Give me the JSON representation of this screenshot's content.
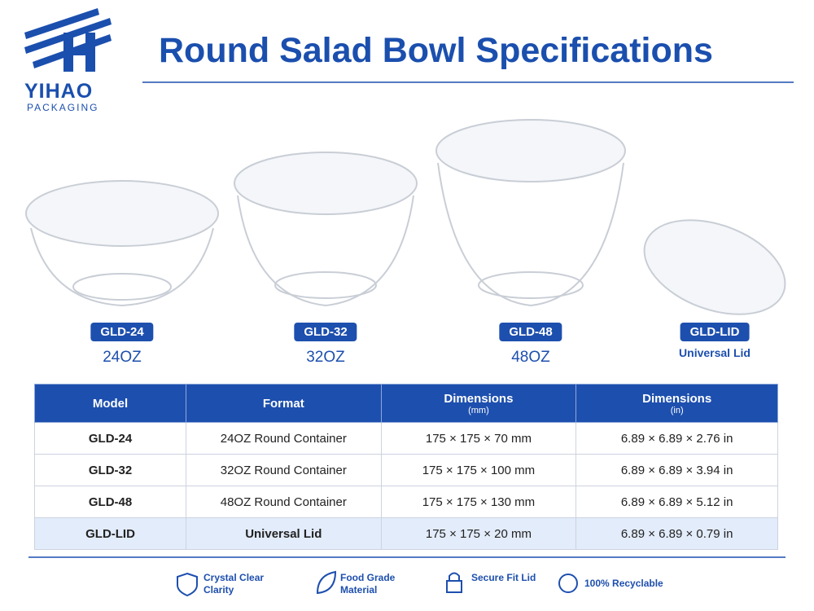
{
  "logo": {
    "name": "YIHAO",
    "tagline": "PACKAGING"
  },
  "title": "Round Salad Bowl Specifications",
  "products": [
    {
      "model": "GLD-24",
      "size": "24OZ"
    },
    {
      "model": "GLD-32",
      "size": "32OZ"
    },
    {
      "model": "GLD-48",
      "size": "48OZ"
    },
    {
      "model": "GLD-LID",
      "size": "Universal Lid"
    }
  ],
  "table": {
    "headers": [
      {
        "title": "Model"
      },
      {
        "title": "Format"
      },
      {
        "title": "Dimensions",
        "unit": "(mm)"
      },
      {
        "title": "Dimensions",
        "unit": "(in)"
      }
    ],
    "rows": [
      [
        "GLD-24",
        "24OZ Round Container",
        "175 × 175 × 70 mm",
        "6.89 × 6.89 × 2.76 in"
      ],
      [
        "GLD-32",
        "32OZ Round Container",
        "175 × 175 × 100 mm",
        "6.89 × 6.89 × 3.94 in"
      ],
      [
        "GLD-48",
        "48OZ Round Container",
        "175 × 175 × 130 mm",
        "6.89 × 6.89 × 5.12 in"
      ],
      [
        "GLD-LID",
        "Universal Lid",
        "175 × 175 × 20 mm",
        "6.89 × 6.89 × 0.79 in"
      ]
    ]
  },
  "features": [
    "Crystal Clear Clarity",
    "Food Grade Material",
    "Secure Fit Lid",
    "100% Recyclable"
  ]
}
